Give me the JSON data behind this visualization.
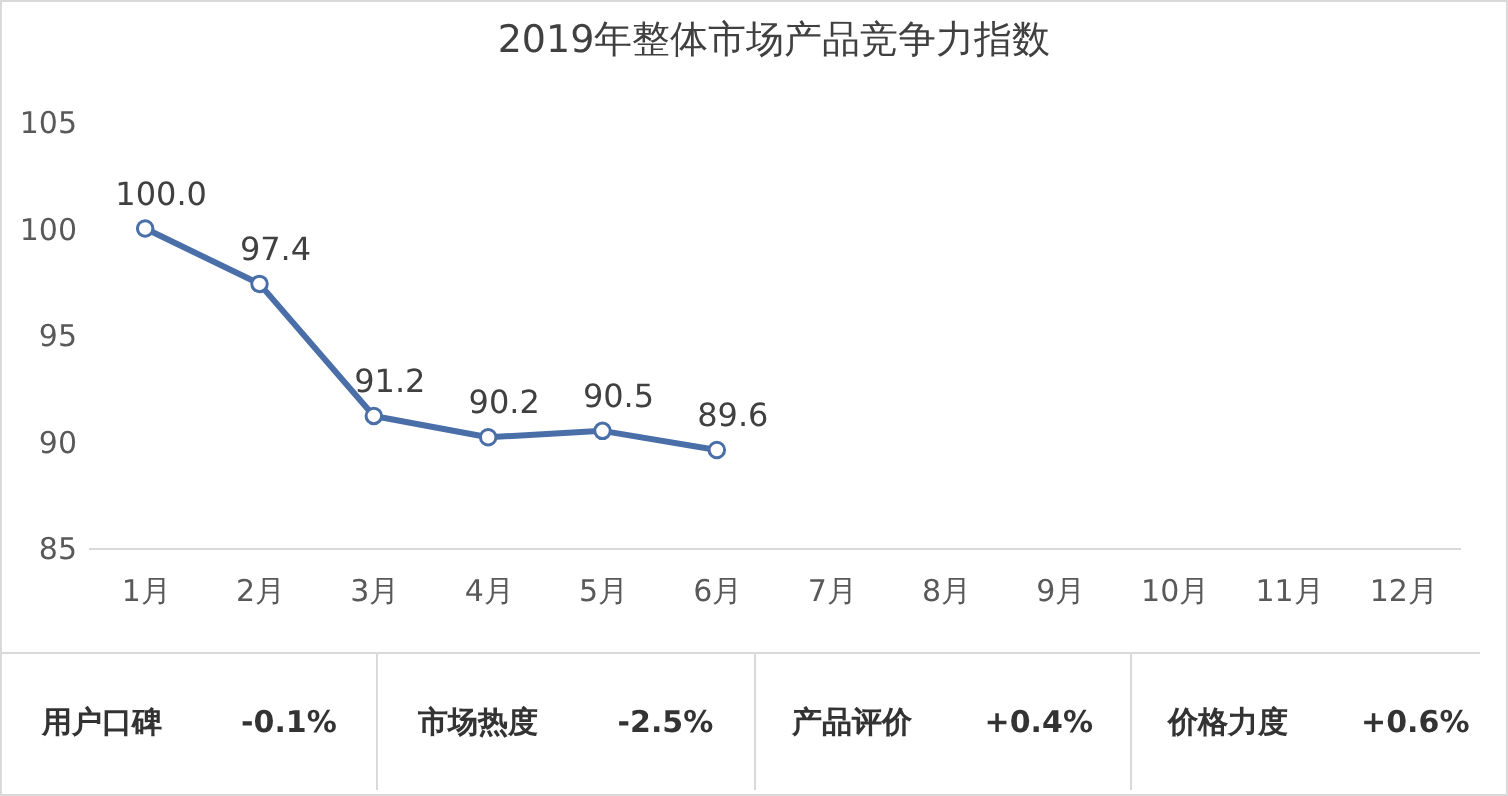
{
  "chart_data": {
    "type": "line",
    "title": "2019年整体市场产品竞争力指数",
    "categories": [
      "1月",
      "2月",
      "3月",
      "4月",
      "5月",
      "6月",
      "7月",
      "8月",
      "9月",
      "10月",
      "11月",
      "12月"
    ],
    "series": [
      {
        "color": "#4a6fa8",
        "values": [
          100.0,
          97.4,
          91.2,
          90.2,
          90.5,
          89.6,
          null,
          null,
          null,
          null,
          null,
          null
        ]
      }
    ],
    "value_labels": [
      "100.0",
      "97.4",
      "91.2",
      "90.2",
      "90.5",
      "89.6",
      null,
      null,
      null,
      null,
      null,
      null
    ],
    "ylim": [
      85,
      105
    ],
    "yticks": [
      85,
      90,
      95,
      100,
      105
    ],
    "grid": false,
    "marker": "circle",
    "line_style": "solid",
    "annotations": [
      "用户口碑",
      "-0.1%",
      "市场热度",
      "-2.5%",
      "产品评价",
      "+0.4%",
      "价格力度",
      "+0.6%"
    ]
  }
}
